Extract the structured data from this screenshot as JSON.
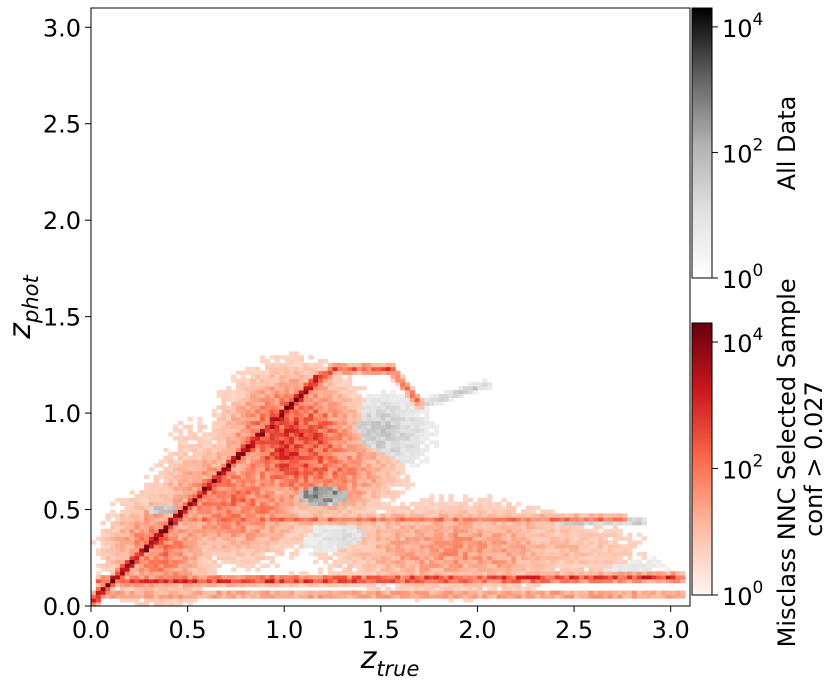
{
  "chart_data": {
    "type": "heatmap",
    "title": "",
    "xlabel": {
      "base": "z",
      "sub": "true"
    },
    "ylabel": {
      "base": "z",
      "sub": "phot"
    },
    "xlim": [
      0.0,
      3.1
    ],
    "ylim": [
      0.0,
      3.1
    ],
    "x_ticks": [
      "0.0",
      "0.5",
      "1.0",
      "1.5",
      "2.0",
      "2.5",
      "3.0"
    ],
    "y_ticks": [
      "0.0",
      "0.5",
      "1.0",
      "1.5",
      "2.0",
      "2.5",
      "3.0"
    ],
    "grid": false,
    "layers": [
      {
        "name": "All Data",
        "colormap": "Greys",
        "scale": "log",
        "vmin": 1,
        "vmax": 20000,
        "colorbar_label": "All Data",
        "colorbar_ticks": [
          {
            "base": "10",
            "exp": "0"
          },
          {
            "base": "10",
            "exp": "2"
          },
          {
            "base": "10",
            "exp": "4"
          }
        ]
      },
      {
        "name": "Misclass NNC Selected Sample conf > 0.027",
        "colormap": "Reds",
        "scale": "log",
        "vmin": 1,
        "vmax": 20000,
        "colorbar_label": [
          "Misclass NNC Selected Sample",
          "conf > 0.027"
        ],
        "colorbar_ticks": [
          {
            "base": "10",
            "exp": "0"
          },
          {
            "base": "10",
            "exp": "2"
          },
          {
            "base": "10",
            "exp": "4"
          }
        ]
      }
    ],
    "features": {
      "red": [
        {
          "kind": "line",
          "from": [
            0.0,
            0.02
          ],
          "to": [
            1.18,
            1.19
          ],
          "level": 3.9
        },
        {
          "kind": "line",
          "from": [
            0.0,
            0.03
          ],
          "to": [
            1.25,
            1.23
          ],
          "level": 2.6
        },
        {
          "kind": "line",
          "from": [
            1.25,
            1.23
          ],
          "to": [
            1.55,
            1.23
          ],
          "level": 2.3
        },
        {
          "kind": "line",
          "from": [
            1.55,
            1.23
          ],
          "to": [
            1.7,
            1.05
          ],
          "level": 1.9
        },
        {
          "kind": "line",
          "from": [
            0.5,
            0.45
          ],
          "to": [
            2.75,
            0.45
          ],
          "level": 1.9
        },
        {
          "kind": "line",
          "from": [
            0.05,
            0.13
          ],
          "to": [
            3.05,
            0.15
          ],
          "level": 2.6
        },
        {
          "kind": "line",
          "from": [
            0.0,
            0.06
          ],
          "to": [
            3.05,
            0.06
          ],
          "level": 1.5
        },
        {
          "kind": "blob",
          "center": [
            1.05,
            0.85
          ],
          "sx": 0.25,
          "sy": 0.25,
          "level": 2.6
        },
        {
          "kind": "blob",
          "center": [
            0.75,
            0.55
          ],
          "sx": 0.3,
          "sy": 0.22,
          "level": 1.9
        },
        {
          "kind": "blob",
          "center": [
            0.35,
            0.3
          ],
          "sx": 0.2,
          "sy": 0.2,
          "level": 1.9
        },
        {
          "kind": "blob",
          "center": [
            1.2,
            0.7
          ],
          "sx": 0.28,
          "sy": 0.18,
          "level": 1.9
        },
        {
          "kind": "blob",
          "center": [
            1.9,
            0.3
          ],
          "sx": 0.5,
          "sy": 0.18,
          "level": 1.5
        },
        {
          "kind": "blob",
          "center": [
            2.4,
            0.3
          ],
          "sx": 0.4,
          "sy": 0.15,
          "level": 1.0
        },
        {
          "kind": "blob",
          "center": [
            0.55,
            0.8
          ],
          "sx": 0.2,
          "sy": 0.2,
          "level": 0.7
        }
      ],
      "grey": [
        {
          "kind": "blob",
          "center": [
            1.2,
            0.58
          ],
          "sx": 0.12,
          "sy": 0.05,
          "level": 3.0
        },
        {
          "kind": "blob",
          "center": [
            1.5,
            0.9
          ],
          "sx": 0.2,
          "sy": 0.15,
          "level": 1.5
        },
        {
          "kind": "line",
          "from": [
            1.72,
            1.05
          ],
          "to": [
            2.05,
            1.15
          ],
          "level": 1.4
        },
        {
          "kind": "line",
          "from": [
            0.3,
            0.5
          ],
          "to": [
            0.6,
            0.5
          ],
          "level": 1.8
        },
        {
          "kind": "line",
          "from": [
            2.4,
            0.44
          ],
          "to": [
            2.85,
            0.44
          ],
          "level": 1.6
        },
        {
          "kind": "blob",
          "center": [
            1.6,
            0.35
          ],
          "sx": 0.5,
          "sy": 0.1,
          "level": 1.2
        },
        {
          "kind": "blob",
          "center": [
            2.7,
            0.2
          ],
          "sx": 0.3,
          "sy": 0.06,
          "level": 0.8
        }
      ]
    }
  }
}
